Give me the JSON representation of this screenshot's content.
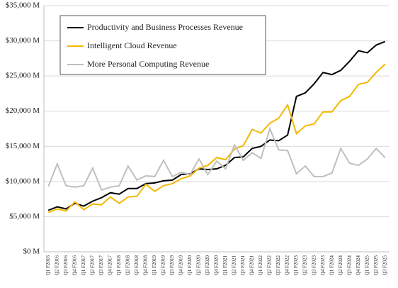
{
  "chart_data": {
    "type": "line",
    "categories": [
      "Q1 F2016",
      "Q2 F2016",
      "Q3 F2016",
      "Q4 F2016",
      "Q1 F2017",
      "Q2 F2017",
      "Q3 F2017",
      "Q4 F2017",
      "Q1 F2018",
      "Q2 F2018",
      "Q3 F2018",
      "Q4 F2018",
      "Q1 F2019",
      "Q2 F2019",
      "Q3 F2019",
      "Q4 F2019",
      "Q1 F2020",
      "Q2 F2020",
      "Q3 F2020",
      "Q4 F2020",
      "Q1 F2021",
      "Q2 F2021",
      "Q3 F2021",
      "Q4 F2021",
      "Q1 F2022",
      "Q2 F2022",
      "Q3 F2022",
      "Q4 F2022",
      "Q1 F2023",
      "Q2 F2023",
      "Q3 F2023",
      "Q4 F2023",
      "Q1 F2024",
      "Q2 F2024",
      "Q3 F2024",
      "Q4 F2024",
      "Q1 F2025",
      "Q2 F2025",
      "Q3 F2025"
    ],
    "series": [
      {
        "name": "Productivity and Business Processes Revenue",
        "color": "#000000",
        "values": [
          5900,
          6400,
          6100,
          6900,
          6500,
          7200,
          7700,
          8400,
          8200,
          9000,
          9000,
          9700,
          9800,
          10100,
          10200,
          11000,
          11100,
          11800,
          11700,
          11800,
          12300,
          13400,
          13500,
          14700,
          15000,
          15900,
          15800,
          16600,
          22100,
          22600,
          23900,
          25500,
          25200,
          25800,
          27100,
          28600,
          28300,
          29400,
          29900
        ]
      },
      {
        "name": "Intelligent Cloud Revenue",
        "color": "#f2b800",
        "values": [
          5600,
          6100,
          5800,
          7100,
          6000,
          6800,
          6700,
          7800,
          6900,
          7800,
          7900,
          9600,
          8600,
          9400,
          9700,
          10400,
          10800,
          11900,
          12300,
          13400,
          13100,
          14600,
          15100,
          17400,
          16900,
          18300,
          19000,
          20900,
          16800,
          17900,
          18200,
          19900,
          19900,
          21500,
          22100,
          23800,
          24100,
          25500,
          26700
        ]
      },
      {
        "name": "More Personal Computing Revenue",
        "color": "#bfbfbf",
        "values": [
          9300,
          12500,
          9400,
          9200,
          9400,
          11900,
          8800,
          9200,
          9400,
          12200,
          10200,
          10800,
          10700,
          13000,
          10700,
          11300,
          11000,
          13200,
          11000,
          12900,
          11800,
          15200,
          13000,
          14100,
          13300,
          17500,
          14500,
          14400,
          11100,
          12200,
          10700,
          10700,
          11200,
          14700,
          12600,
          12300,
          13200,
          14700,
          13400
        ]
      }
    ],
    "ylim": [
      0,
      35000
    ],
    "yticks": [
      {
        "value": 0,
        "label": "$0 M"
      },
      {
        "value": 5000,
        "label": "$5,000 M"
      },
      {
        "value": 10000,
        "label": "$10,000 M"
      },
      {
        "value": 15000,
        "label": "$15,000 M"
      },
      {
        "value": 20000,
        "label": "$20,000 M"
      },
      {
        "value": 25000,
        "label": "$25,000 M"
      },
      {
        "value": 30000,
        "label": "$30,000 M"
      },
      {
        "value": 35000,
        "label": "$35,000 M"
      }
    ],
    "grid": true,
    "legend": "top-left"
  }
}
